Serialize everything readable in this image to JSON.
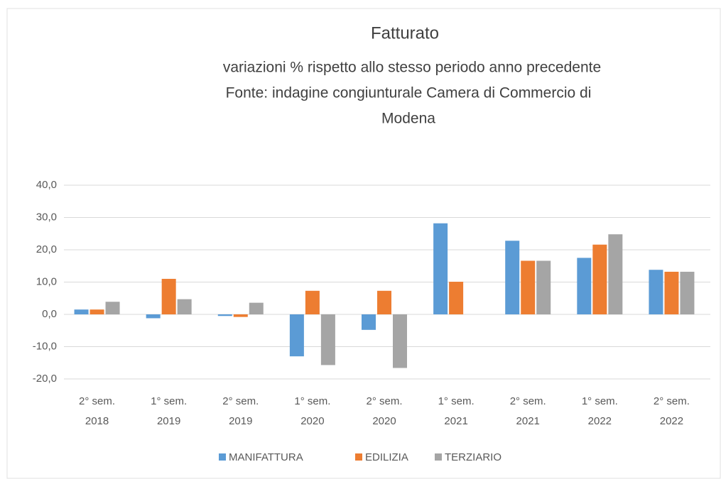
{
  "chart_data": {
    "type": "bar",
    "title": "Fatturato",
    "subtitle": "variazioni % rispetto allo stesso periodo anno precedente",
    "source": [
      "Fonte: indagine congiunturale Camera di Commercio di",
      "Modena"
    ],
    "categories": [
      [
        "2° sem.",
        "2018"
      ],
      [
        "1° sem.",
        "2019"
      ],
      [
        "2° sem.",
        "2019"
      ],
      [
        "1° sem.",
        "2020"
      ],
      [
        "2° sem.",
        "2020"
      ],
      [
        "1° sem.",
        "2021"
      ],
      [
        "2° sem.",
        "2021"
      ],
      [
        "1° sem.",
        "2022"
      ],
      [
        "2° sem.",
        "2022"
      ]
    ],
    "series": [
      {
        "name": "MANIFATTURA",
        "color": "#5b9bd5",
        "values": [
          1.5,
          -1.2,
          -0.5,
          -13,
          -4.8,
          28.2,
          22.8,
          17.5,
          13.8
        ]
      },
      {
        "name": "EDILIZIA",
        "color": "#ed7d31",
        "values": [
          1.5,
          11,
          -0.8,
          7.3,
          7.3,
          10.1,
          16.6,
          21.6,
          13.2
        ]
      },
      {
        "name": "TERZIARIO",
        "color": "#a5a5a5",
        "values": [
          3.9,
          4.7,
          3.6,
          -15.7,
          -16.6,
          null,
          16.6,
          24.8,
          13.2
        ]
      }
    ],
    "ylim": [
      -20,
      40
    ],
    "yticks": [
      {
        "value": -20,
        "label": "-20,0"
      },
      {
        "value": -10,
        "label": "-10,0"
      },
      {
        "value": 0,
        "label": "0,0"
      },
      {
        "value": 10,
        "label": "10,0"
      },
      {
        "value": 20,
        "label": "20,0"
      },
      {
        "value": 30,
        "label": "30,0"
      },
      {
        "value": 40,
        "label": "40,0"
      }
    ],
    "grid": true,
    "legend": "bottom"
  }
}
